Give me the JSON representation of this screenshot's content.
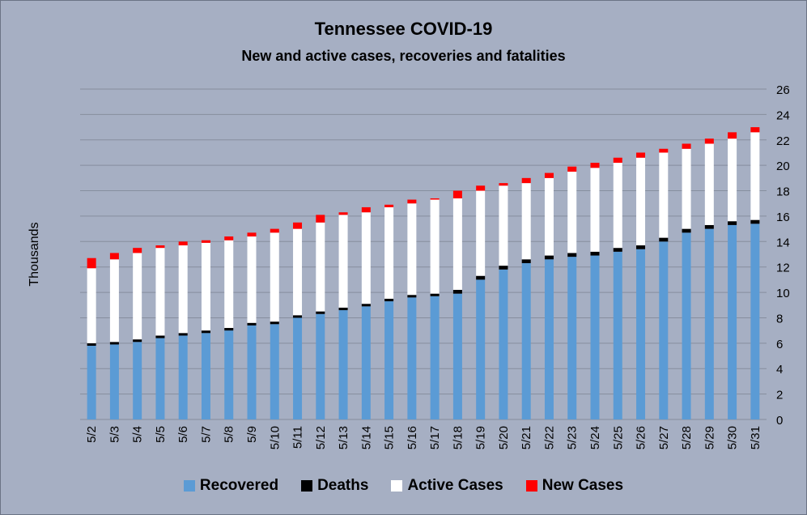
{
  "chart_data": {
    "type": "bar",
    "stacked": true,
    "title": "Tennessee COVID-19",
    "subtitle": "New and active cases, recoveries and fatalities",
    "ylabel": "Thousands",
    "ylim": [
      0,
      26
    ],
    "yticks": [
      0,
      2,
      4,
      6,
      8,
      10,
      12,
      14,
      16,
      18,
      20,
      22,
      24,
      26
    ],
    "y_axis_position": "right",
    "grid": true,
    "legend_position": "bottom",
    "categories": [
      "5/2",
      "5/3",
      "5/4",
      "5/5",
      "5/6",
      "5/7",
      "5/8",
      "5/9",
      "5/10",
      "5/11",
      "5/12",
      "5/13",
      "5/14",
      "5/15",
      "5/16",
      "5/17",
      "5/18",
      "5/19",
      "5/20",
      "5/21",
      "5/22",
      "5/23",
      "5/24",
      "5/25",
      "5/26",
      "5/27",
      "5/28",
      "5/29",
      "5/30",
      "5/31"
    ],
    "series": [
      {
        "name": "Recovered",
        "color": "#5b9bd5",
        "values": [
          5.8,
          5.9,
          6.1,
          6.4,
          6.6,
          6.8,
          7.0,
          7.4,
          7.5,
          8.0,
          8.3,
          8.6,
          8.9,
          9.3,
          9.6,
          9.7,
          9.9,
          11.0,
          11.8,
          12.3,
          12.6,
          12.8,
          12.9,
          13.2,
          13.4,
          14.0,
          14.7,
          15.0,
          15.3,
          15.4
        ]
      },
      {
        "name": "Deaths",
        "color": "#000000",
        "values": [
          0.2,
          0.2,
          0.2,
          0.2,
          0.2,
          0.2,
          0.2,
          0.2,
          0.2,
          0.2,
          0.2,
          0.2,
          0.2,
          0.2,
          0.2,
          0.2,
          0.3,
          0.3,
          0.3,
          0.3,
          0.3,
          0.3,
          0.3,
          0.3,
          0.3,
          0.3,
          0.3,
          0.3,
          0.3,
          0.3
        ]
      },
      {
        "name": "Active Cases",
        "color": "#ffffff",
        "values": [
          5.9,
          6.5,
          6.8,
          6.9,
          6.9,
          6.9,
          6.9,
          6.8,
          7.0,
          6.8,
          7.0,
          7.3,
          7.2,
          7.2,
          7.2,
          7.4,
          7.2,
          6.7,
          6.3,
          6.0,
          6.1,
          6.4,
          6.6,
          6.7,
          6.9,
          6.7,
          6.3,
          6.4,
          6.5,
          6.9
        ]
      },
      {
        "name": "New Cases",
        "color": "#ff0000",
        "values": [
          0.8,
          0.5,
          0.4,
          0.2,
          0.3,
          0.2,
          0.3,
          0.3,
          0.3,
          0.5,
          0.6,
          0.2,
          0.4,
          0.2,
          0.3,
          0.1,
          0.6,
          0.4,
          0.2,
          0.4,
          0.4,
          0.4,
          0.4,
          0.4,
          0.4,
          0.3,
          0.4,
          0.4,
          0.5,
          0.4
        ]
      }
    ]
  }
}
